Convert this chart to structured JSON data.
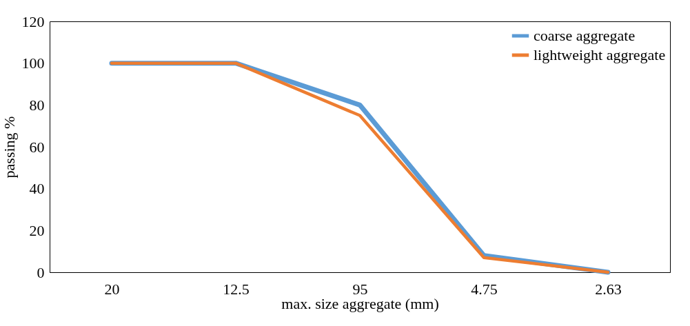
{
  "chart_data": {
    "type": "line",
    "xlabel": "max. size aggregate (mm)",
    "ylabel": "passing %",
    "categories": [
      "20",
      "12.5",
      "95",
      "4.75",
      "2.63"
    ],
    "series": [
      {
        "name": "coarse  aggregate",
        "color": "#5b9bd5",
        "values": [
          100,
          100,
          80,
          8,
          0
        ]
      },
      {
        "name": "lightweight aggregate",
        "color": "#ed7d31",
        "values": [
          100,
          100,
          75,
          7,
          0
        ]
      }
    ],
    "ylim": [
      0,
      120
    ],
    "yticks": [
      0,
      20,
      40,
      60,
      80,
      100,
      120
    ],
    "grid": false,
    "legend": "top right",
    "marker": "none",
    "line_style": "solid"
  }
}
